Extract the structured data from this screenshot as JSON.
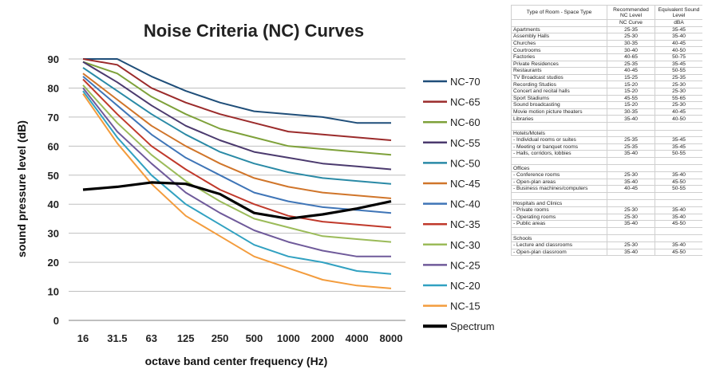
{
  "chart_data": {
    "type": "line",
    "title": "Noise Criteria (NC) Curves",
    "xlabel": "octave band center frequency (Hz)",
    "ylabel": "sound pressure level (dB)",
    "x_categories": [
      "16",
      "31.5",
      "63",
      "125",
      "250",
      "500",
      "1000",
      "2000",
      "4000",
      "8000"
    ],
    "ylim": [
      0,
      90
    ],
    "y_ticks": [
      "0",
      "10",
      "20",
      "30",
      "40",
      "50",
      "60",
      "70",
      "80",
      "90"
    ],
    "grid": "horizontal",
    "legend_position": "right",
    "series": [
      {
        "name": "NC-70",
        "color": "#1f4e79",
        "values": [
          90,
          90,
          84,
          79,
          75,
          72,
          71,
          70,
          68,
          68
        ]
      },
      {
        "name": "NC-65",
        "color": "#9b2b2b",
        "values": [
          90,
          88,
          80,
          75,
          71,
          68,
          65,
          64,
          63,
          62
        ]
      },
      {
        "name": "NC-60",
        "color": "#7ea13a",
        "values": [
          89,
          85,
          77,
          71,
          66,
          63,
          60,
          59,
          58,
          57
        ]
      },
      {
        "name": "NC-55",
        "color": "#4b3a6e",
        "values": [
          89,
          82,
          74,
          67,
          62,
          58,
          56,
          54,
          53,
          52
        ]
      },
      {
        "name": "NC-50",
        "color": "#2a8aa6",
        "values": [
          87,
          79,
          71,
          64,
          58,
          54,
          51,
          49,
          48,
          47
        ]
      },
      {
        "name": "NC-45",
        "color": "#d0752a",
        "values": [
          85,
          76,
          67,
          60,
          54,
          49,
          46,
          44,
          43,
          42
        ]
      },
      {
        "name": "NC-40",
        "color": "#3f75b7",
        "values": [
          84,
          74,
          64,
          56,
          50,
          44,
          41,
          39,
          38,
          37
        ]
      },
      {
        "name": "NC-35",
        "color": "#c0392b",
        "values": [
          83,
          71,
          60,
          52,
          45,
          40,
          36,
          34,
          33,
          32
        ]
      },
      {
        "name": "NC-30",
        "color": "#9bbb59",
        "values": [
          81,
          68,
          57,
          48,
          41,
          35,
          32,
          29,
          28,
          27
        ]
      },
      {
        "name": "NC-25",
        "color": "#6f5a9a",
        "values": [
          80,
          65,
          54,
          44,
          37,
          31,
          27,
          24,
          22,
          22
        ]
      },
      {
        "name": "NC-20",
        "color": "#31a1c1",
        "values": [
          79,
          63,
          50,
          40,
          33,
          26,
          22,
          20,
          17,
          16
        ]
      },
      {
        "name": "NC-15",
        "color": "#f39c3d",
        "values": [
          78,
          61,
          47,
          36,
          29,
          22,
          18,
          14,
          12,
          11
        ]
      },
      {
        "name": "Spectrum",
        "color": "#000000",
        "bold": true,
        "values": [
          45,
          46,
          47.5,
          47,
          43.5,
          37,
          35,
          36.5,
          38.5,
          41
        ]
      }
    ]
  },
  "table": {
    "headers": [
      "Type of Room - Space Type",
      "Recommended NC Level",
      "Equivalent Sound Level"
    ],
    "subheaders": [
      "",
      "NC Curve",
      "dBA"
    ],
    "rows": [
      [
        "Apartments",
        "25-35",
        "35-45"
      ],
      [
        "Assembly Halls",
        "25-30",
        "35-40"
      ],
      [
        "Churches",
        "30-35",
        "40-45"
      ],
      [
        "Courtrooms",
        "30-40",
        "40-50"
      ],
      [
        "Factories",
        "40-65",
        "50-75"
      ],
      [
        "Private Residences",
        "25-35",
        "35-45"
      ],
      [
        "Restaurants",
        "40-45",
        "50-55"
      ],
      [
        "TV Broadcast studios",
        "15-25",
        "25-35"
      ],
      [
        "Recording Studios",
        "15-20",
        "25-30"
      ],
      [
        "Concert and recital halls",
        "15-20",
        "25-30"
      ],
      [
        "Sport Stadiums",
        "45-55",
        "55-65"
      ],
      [
        "Sound broadcasting",
        "15-20",
        "25-30"
      ],
      [
        "Movie motion picture theaters",
        "30-35",
        "40-45"
      ],
      [
        "Libraries",
        "35-40",
        "40-50"
      ],
      [
        "",
        "",
        ""
      ],
      [
        "Hotels/Motels",
        "",
        ""
      ],
      [
        "- Individual rooms or suites",
        "25-35",
        "35-45"
      ],
      [
        "- Meeting or banquet rooms",
        "25-35",
        "35-45"
      ],
      [
        "- Halls, corridors, lobbies",
        "35-40",
        "50-55"
      ],
      [
        "",
        "",
        ""
      ],
      [
        "Offices",
        "",
        ""
      ],
      [
        "- Conference rooms",
        "25-30",
        "35-40"
      ],
      [
        "- Open-plan areas",
        "35-40",
        "45-50"
      ],
      [
        "- Business machines/computers",
        "40-45",
        "50-55"
      ],
      [
        "",
        "",
        ""
      ],
      [
        "Hospitals and Clinics",
        "",
        ""
      ],
      [
        "- Private rooms",
        "25-30",
        "35-40"
      ],
      [
        "- Operating rooms",
        "25-30",
        "35-40"
      ],
      [
        "- Public areas",
        "35-40",
        "45-50"
      ],
      [
        "",
        "",
        ""
      ],
      [
        "Schools",
        "",
        ""
      ],
      [
        "- Lecture and classrooms",
        "25-30",
        "35-40"
      ],
      [
        "- Open-plan classroom",
        "35-40",
        "45-50"
      ]
    ]
  }
}
